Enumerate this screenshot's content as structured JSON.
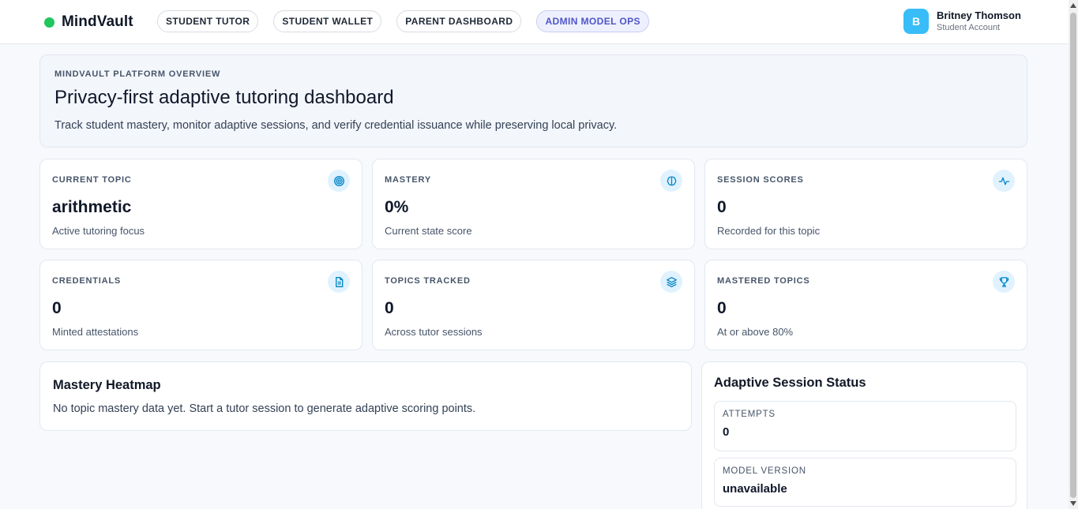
{
  "header": {
    "brand": "MindVault",
    "nav": [
      {
        "label": "STUDENT TUTOR",
        "active": false
      },
      {
        "label": "STUDENT WALLET",
        "active": false
      },
      {
        "label": "PARENT DASHBOARD",
        "active": false
      },
      {
        "label": "ADMIN MODEL OPS",
        "active": true
      }
    ],
    "user": {
      "initial": "B",
      "name": "Britney Thomson",
      "role": "Student Account"
    }
  },
  "overview": {
    "eyebrow": "MINDVAULT PLATFORM OVERVIEW",
    "title": "Privacy-first adaptive tutoring dashboard",
    "description": "Track student mastery, monitor adaptive sessions, and verify credential issuance while preserving local privacy."
  },
  "stats": [
    {
      "label": "CURRENT TOPIC",
      "value": "arithmetic",
      "sub": "Active tutoring focus",
      "icon": "target-icon"
    },
    {
      "label": "MASTERY",
      "value": "0%",
      "sub": "Current state score",
      "icon": "brain-icon"
    },
    {
      "label": "SESSION SCORES",
      "value": "0",
      "sub": "Recorded for this topic",
      "icon": "activity-icon"
    },
    {
      "label": "CREDENTIALS",
      "value": "0",
      "sub": "Minted attestations",
      "icon": "document-icon"
    },
    {
      "label": "TOPICS TRACKED",
      "value": "0",
      "sub": "Across tutor sessions",
      "icon": "layers-icon"
    },
    {
      "label": "MASTERED TOPICS",
      "value": "0",
      "sub": "At or above 80%",
      "icon": "trophy-icon"
    }
  ],
  "heatmap": {
    "title": "Mastery Heatmap",
    "empty_text": "No topic mastery data yet. Start a tutor session to generate adaptive scoring points."
  },
  "session_status": {
    "title": "Adaptive Session Status",
    "items": [
      {
        "label": "ATTEMPTS",
        "value": "0"
      },
      {
        "label": "MODEL VERSION",
        "value": "unavailable"
      }
    ]
  },
  "colors": {
    "accent": "#4f55c9",
    "brand_dot": "#22c55e",
    "avatar": "#38bdf8",
    "icon_bg": "#e0f2fe",
    "icon_stroke": "#0284c7"
  }
}
